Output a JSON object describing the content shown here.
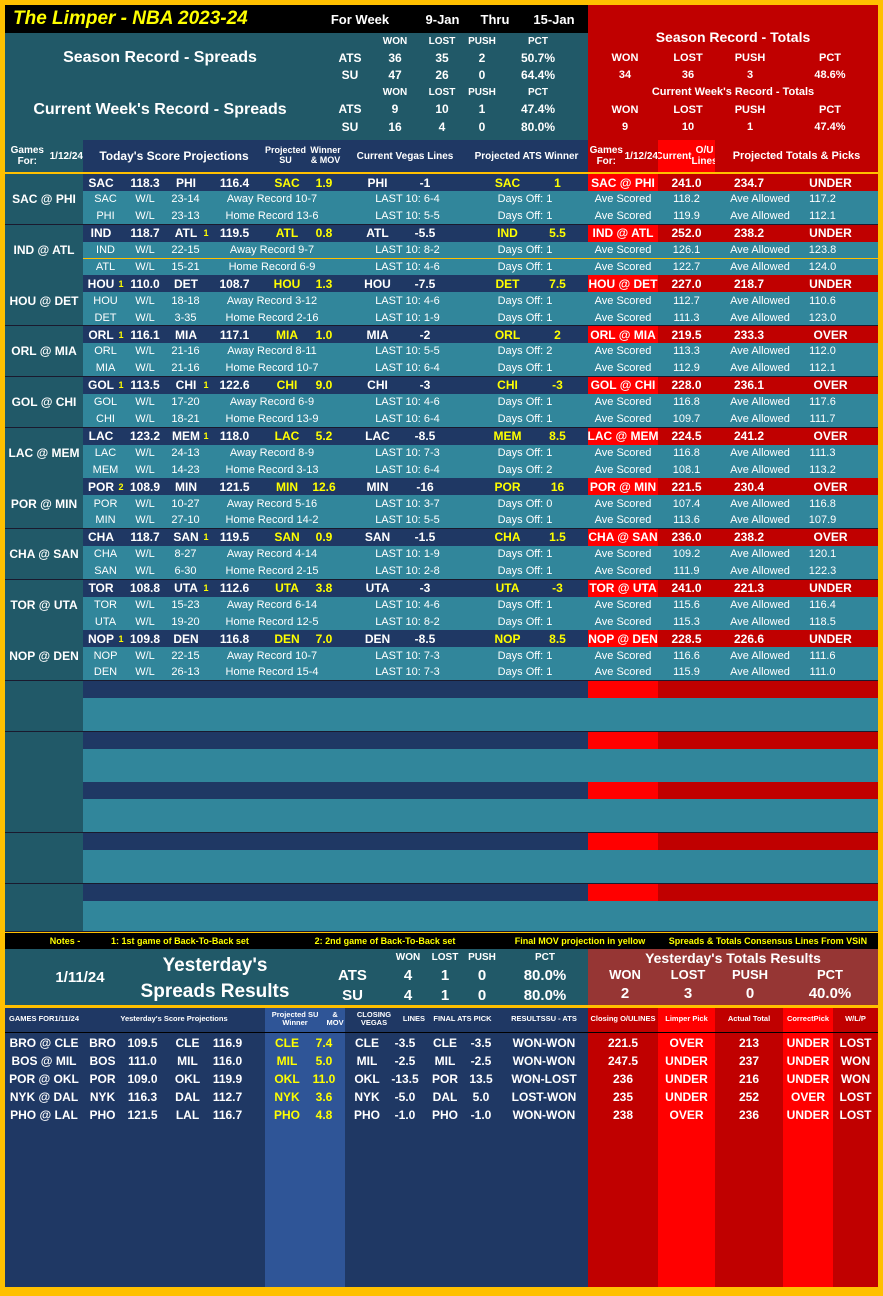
{
  "header": {
    "title": "The Limper - NBA 2023-24",
    "for_week": "For Week",
    "start": "9-Jan",
    "thru": "Thru",
    "end": "15-Jan"
  },
  "season_spreads": {
    "label": "Season Record - Spreads",
    "week_label": "Current Week's Record - Spreads",
    "cols": [
      "WON",
      "LOST",
      "PUSH",
      "PCT"
    ],
    "season_rows": [
      {
        "type": "ATS",
        "won": "36",
        "lost": "35",
        "push": "2",
        "pct": "50.7%"
      },
      {
        "type": "SU",
        "won": "47",
        "lost": "26",
        "push": "0",
        "pct": "64.4%"
      }
    ],
    "week_rows": [
      {
        "type": "ATS",
        "won": "9",
        "lost": "10",
        "push": "1",
        "pct": "47.4%"
      },
      {
        "type": "SU",
        "won": "16",
        "lost": "4",
        "push": "0",
        "pct": "80.0%"
      }
    ]
  },
  "season_totals": {
    "label": "Season Record - Totals",
    "week_label": "Current Week's Record - Totals",
    "cols": [
      "WON",
      "LOST",
      "PUSH",
      "PCT"
    ],
    "season": {
      "won": "34",
      "lost": "36",
      "push": "3",
      "pct": "48.6%"
    },
    "week": {
      "won": "9",
      "lost": "10",
      "push": "1",
      "pct": "47.4%"
    }
  },
  "col_headers": {
    "games_for": "Games For:",
    "date": "1/12/24",
    "today_proj": "Today's Score Projections",
    "proj_su_1": "Projected SU",
    "proj_su_2": "Winner & MOV",
    "vegas": "Current Vegas Lines",
    "ats": "Projected ATS Winner",
    "games_for_r": "Games For:",
    "date_r": "1/12/24",
    "ou_1": "Current",
    "ou_2": "O/U Lines",
    "totals": "Projected Totals & Picks"
  },
  "labels": {
    "wl": "W/L",
    "ave_scored": "Ave Scored",
    "ave_allowed": "Ave Allowed"
  },
  "games": [
    {
      "matchup": "SAC @ PHI",
      "t1": "SAC",
      "n1": "",
      "s1": "118.3",
      "t2": "PHI",
      "n2": "",
      "s2": "116.4",
      "su_team": "SAC",
      "su_mov": "1.9",
      "line_team": "PHI",
      "line": "-1",
      "ats_team": "SAC",
      "ats_val": "1",
      "ou": "241.0",
      "proj_total": "234.7",
      "pick": "UNDER",
      "r1": {
        "team": "SAC",
        "wl": "23-14",
        "rec": "Away Record 10-7",
        "last10": "LAST 10: 6-4",
        "days": "Days Off: 1",
        "scored": "118.2",
        "allowed": "117.2"
      },
      "r2": {
        "team": "PHI",
        "wl": "23-13",
        "rec": "Home Record 13-6",
        "last10": "LAST 10: 5-5",
        "days": "Days Off: 1",
        "scored": "119.9",
        "allowed": "112.1"
      }
    },
    {
      "matchup": "IND @ ATL",
      "t1": "IND",
      "n1": "",
      "s1": "118.7",
      "t2": "ATL",
      "n2": "1",
      "s2": "119.5",
      "su_team": "ATL",
      "su_mov": "0.8",
      "line_team": "ATL",
      "line": "-5.5",
      "ats_team": "IND",
      "ats_val": "5.5",
      "ou": "252.0",
      "proj_total": "238.2",
      "pick": "UNDER",
      "r1": {
        "team": "IND",
        "wl": "22-15",
        "rec": "Away Record 9-7",
        "last10": "LAST 10: 8-2",
        "days": "Days Off: 1",
        "scored": "126.1",
        "allowed": "123.8"
      },
      "r2": {
        "team": "ATL",
        "wl": "15-21",
        "rec": "Home Record 6-9",
        "last10": "LAST 10: 4-6",
        "days": "Days Off: 1",
        "scored": "122.7",
        "allowed": "124.0"
      }
    },
    {
      "matchup": "HOU @ DET",
      "t1": "HOU",
      "n1": "1",
      "s1": "110.0",
      "t2": "DET",
      "n2": "",
      "s2": "108.7",
      "su_team": "HOU",
      "su_mov": "1.3",
      "line_team": "HOU",
      "line": "-7.5",
      "ats_team": "DET",
      "ats_val": "7.5",
      "ou": "227.0",
      "proj_total": "218.7",
      "pick": "UNDER",
      "r1": {
        "team": "HOU",
        "wl": "18-18",
        "rec": "Away Record 3-12",
        "last10": "LAST 10: 4-6",
        "days": "Days Off: 1",
        "scored": "112.7",
        "allowed": "110.6"
      },
      "r2": {
        "team": "DET",
        "wl": "3-35",
        "rec": "Home Record 2-16",
        "last10": "LAST 10: 1-9",
        "days": "Days Off: 1",
        "scored": "111.3",
        "allowed": "123.0"
      }
    },
    {
      "matchup": "ORL @ MIA",
      "t1": "ORL",
      "n1": "1",
      "s1": "116.1",
      "t2": "MIA",
      "n2": "",
      "s2": "117.1",
      "su_team": "MIA",
      "su_mov": "1.0",
      "line_team": "MIA",
      "line": "-2",
      "ats_team": "ORL",
      "ats_val": "2",
      "ou": "219.5",
      "proj_total": "233.3",
      "pick": "OVER",
      "r1": {
        "team": "ORL",
        "wl": "21-16",
        "rec": "Away Record 8-11",
        "last10": "LAST 10: 5-5",
        "days": "Days Off: 2",
        "scored": "113.3",
        "allowed": "112.0"
      },
      "r2": {
        "team": "MIA",
        "wl": "21-16",
        "rec": "Home Record 10-7",
        "last10": "LAST 10: 6-4",
        "days": "Days Off: 1",
        "scored": "112.9",
        "allowed": "112.1"
      }
    },
    {
      "matchup": "GOL @ CHI",
      "t1": "GOL",
      "n1": "1",
      "s1": "113.5",
      "t2": "CHI",
      "n2": "1",
      "s2": "122.6",
      "su_team": "CHI",
      "su_mov": "9.0",
      "line_team": "CHI",
      "line": "-3",
      "ats_team": "CHI",
      "ats_val": "-3",
      "ou": "228.0",
      "proj_total": "236.1",
      "pick": "OVER",
      "r1": {
        "team": "GOL",
        "wl": "17-20",
        "rec": "Away Record 6-9",
        "last10": "LAST 10: 4-6",
        "days": "Days Off: 1",
        "scored": "116.8",
        "allowed": "117.6"
      },
      "r2": {
        "team": "CHI",
        "wl": "18-21",
        "rec": "Home Record 13-9",
        "last10": "LAST 10: 6-4",
        "days": "Days Off: 1",
        "scored": "109.7",
        "allowed": "111.7"
      }
    },
    {
      "matchup": "LAC @ MEM",
      "t1": "LAC",
      "n1": "",
      "s1": "123.2",
      "t2": "MEM",
      "n2": "1",
      "s2": "118.0",
      "su_team": "LAC",
      "su_mov": "5.2",
      "line_team": "LAC",
      "line": "-8.5",
      "ats_team": "MEM",
      "ats_val": "8.5",
      "ou": "224.5",
      "proj_total": "241.2",
      "pick": "OVER",
      "r1": {
        "team": "LAC",
        "wl": "24-13",
        "rec": "Away Record 8-9",
        "last10": "LAST 10: 7-3",
        "days": "Days Off: 1",
        "scored": "116.8",
        "allowed": "111.3"
      },
      "r2": {
        "team": "MEM",
        "wl": "14-23",
        "rec": "Home Record 3-13",
        "last10": "LAST 10: 6-4",
        "days": "Days Off: 2",
        "scored": "108.1",
        "allowed": "113.2"
      }
    },
    {
      "matchup": "POR @ MIN",
      "t1": "POR",
      "n1": "2",
      "s1": "108.9",
      "t2": "MIN",
      "n2": "",
      "s2": "121.5",
      "su_team": "MIN",
      "su_mov": "12.6",
      "line_team": "MIN",
      "line": "-16",
      "ats_team": "POR",
      "ats_val": "16",
      "ou": "221.5",
      "proj_total": "230.4",
      "pick": "OVER",
      "r1": {
        "team": "POR",
        "wl": "10-27",
        "rec": "Away Record 5-16",
        "last10": "LAST 10: 3-7",
        "days": "Days Off: 0",
        "scored": "107.4",
        "allowed": "116.8"
      },
      "r2": {
        "team": "MIN",
        "wl": "27-10",
        "rec": "Home Record 14-2",
        "last10": "LAST 10: 5-5",
        "days": "Days Off: 1",
        "scored": "113.6",
        "allowed": "107.9"
      }
    },
    {
      "matchup": "CHA @ SAN",
      "t1": "CHA",
      "n1": "",
      "s1": "118.7",
      "t2": "SAN",
      "n2": "1",
      "s2": "119.5",
      "su_team": "SAN",
      "su_mov": "0.9",
      "line_team": "SAN",
      "line": "-1.5",
      "ats_team": "CHA",
      "ats_val": "1.5",
      "ou": "236.0",
      "proj_total": "238.2",
      "pick": "OVER",
      "r1": {
        "team": "CHA",
        "wl": "8-27",
        "rec": "Away Record 4-14",
        "last10": "LAST 10: 1-9",
        "days": "Days Off: 1",
        "scored": "109.2",
        "allowed": "120.1"
      },
      "r2": {
        "team": "SAN",
        "wl": "6-30",
        "rec": "Home Record 2-15",
        "last10": "LAST 10: 2-8",
        "days": "Days Off: 1",
        "scored": "111.9",
        "allowed": "122.3"
      }
    },
    {
      "matchup": "TOR @ UTA",
      "t1": "TOR",
      "n1": "",
      "s1": "108.8",
      "t2": "UTA",
      "n2": "1",
      "s2": "112.6",
      "su_team": "UTA",
      "su_mov": "3.8",
      "line_team": "UTA",
      "line": "-3",
      "ats_team": "UTA",
      "ats_val": "-3",
      "ou": "241.0",
      "proj_total": "221.3",
      "pick": "UNDER",
      "r1": {
        "team": "TOR",
        "wl": "15-23",
        "rec": "Away Record 6-14",
        "last10": "LAST 10: 4-6",
        "days": "Days Off: 1",
        "scored": "115.6",
        "allowed": "116.4"
      },
      "r2": {
        "team": "UTA",
        "wl": "19-20",
        "rec": "Home Record 12-5",
        "last10": "LAST 10: 8-2",
        "days": "Days Off: 1",
        "scored": "115.3",
        "allowed": "118.5"
      }
    },
    {
      "matchup": "NOP @ DEN",
      "t1": "NOP",
      "n1": "1",
      "s1": "109.8",
      "t2": "DEN",
      "n2": "",
      "s2": "116.8",
      "su_team": "DEN",
      "su_mov": "7.0",
      "line_team": "DEN",
      "line": "-8.5",
      "ats_team": "NOP",
      "ats_val": "8.5",
      "ou": "228.5",
      "proj_total": "226.6",
      "pick": "UNDER",
      "r1": {
        "team": "NOP",
        "wl": "22-15",
        "rec": "Away Record 10-7",
        "last10": "LAST 10: 7-3",
        "days": "Days Off: 1",
        "scored": "116.6",
        "allowed": "111.6"
      },
      "r2": {
        "team": "DEN",
        "wl": "26-13",
        "rec": "Home Record 15-4",
        "last10": "LAST 10: 7-3",
        "days": "Days Off: 1",
        "scored": "115.9",
        "allowed": "111.0"
      }
    }
  ],
  "notes": {
    "label": "Notes -",
    "n1": "1: 1st game of Back-To-Back set",
    "n2": "2: 2nd game of Back-To-Back set",
    "n3": "Final MOV projection in yellow",
    "n4": "Spreads & Totals Consensus Lines From VSiN"
  },
  "yesterday": {
    "date": "1/11/24",
    "title1": "Yesterday's",
    "title2": "Spreads Results",
    "cols": [
      "WON",
      "LOST",
      "PUSH",
      "PCT"
    ],
    "rows": [
      {
        "type": "ATS",
        "won": "4",
        "lost": "1",
        "push": "0",
        "pct": "80.0%"
      },
      {
        "type": "SU",
        "won": "4",
        "lost": "1",
        "push": "0",
        "pct": "80.0%"
      }
    ],
    "totals_title": "Yesterday's Totals Results",
    "totals_cols": [
      "WON",
      "LOST",
      "PUSH",
      "PCT"
    ],
    "totals": {
      "won": "2",
      "lost": "3",
      "push": "0",
      "pct": "40.0%"
    }
  },
  "yest_headers": {
    "games_for_1": "GAMES FOR",
    "games_for_2": "1/11/24",
    "proj": "Yesterday's Score Projections",
    "su_1": "Projected SU Winner",
    "su_2": "& MOV",
    "closing_1": "CLOSING VEGAS",
    "closing_2": "LINES",
    "final_ats": "FINAL ATS PICK",
    "results_1": "RESULTS",
    "results_2": "SU - ATS",
    "closing_ou_1": "Closing O/U",
    "closing_ou_2": "LINES",
    "limper_pick": "Limper Pick",
    "actual_total": "Actual Total",
    "correct_1": "Correct",
    "correct_2": "Pick",
    "wlp": "W/L/P"
  },
  "yest_games": [
    {
      "matchup": "BRO @ CLE",
      "t1": "BRO",
      "s1": "109.5",
      "t2": "CLE",
      "s2": "116.9",
      "su_team": "CLE",
      "su_mov": "7.4",
      "line_team": "CLE",
      "line": "-3.5",
      "ats_team": "CLE",
      "ats_val": "-3.5",
      "result": "WON-WON",
      "ou": "221.5",
      "pick": "OVER",
      "actual": "213",
      "correct": "UNDER",
      "wlp": "LOST"
    },
    {
      "matchup": "BOS @ MIL",
      "t1": "BOS",
      "s1": "111.0",
      "t2": "MIL",
      "s2": "116.0",
      "su_team": "MIL",
      "su_mov": "5.0",
      "line_team": "MIL",
      "line": "-2.5",
      "ats_team": "MIL",
      "ats_val": "-2.5",
      "result": "WON-WON",
      "ou": "247.5",
      "pick": "UNDER",
      "actual": "237",
      "correct": "UNDER",
      "wlp": "WON"
    },
    {
      "matchup": "POR @ OKL",
      "t1": "POR",
      "s1": "109.0",
      "t2": "OKL",
      "s2": "119.9",
      "su_team": "OKL",
      "su_mov": "11.0",
      "line_team": "OKL",
      "line": "-13.5",
      "ats_team": "POR",
      "ats_val": "13.5",
      "result": "WON-LOST",
      "ou": "236",
      "pick": "UNDER",
      "actual": "216",
      "correct": "UNDER",
      "wlp": "WON"
    },
    {
      "matchup": "NYK @ DAL",
      "t1": "NYK",
      "s1": "116.3",
      "t2": "DAL",
      "s2": "112.7",
      "su_team": "NYK",
      "su_mov": "3.6",
      "line_team": "NYK",
      "line": "-5.0",
      "ats_team": "DAL",
      "ats_val": "5.0",
      "result": "LOST-WON",
      "ou": "235",
      "pick": "UNDER",
      "actual": "252",
      "correct": "OVER",
      "wlp": "LOST"
    },
    {
      "matchup": "PHO @ LAL",
      "t1": "PHO",
      "s1": "121.5",
      "t2": "LAL",
      "s2": "116.7",
      "su_team": "PHO",
      "su_mov": "4.8",
      "line_team": "PHO",
      "line": "-1.0",
      "ats_team": "PHO",
      "ats_val": "-1.0",
      "result": "WON-WON",
      "ou": "238",
      "pick": "OVER",
      "actual": "236",
      "correct": "UNDER",
      "wlp": "LOST"
    }
  ],
  "colors": {
    "gold_border": "#ffc000",
    "navy": "#1f3864",
    "teal": "#31869b",
    "dark_teal": "#215968",
    "red": "#c00000",
    "bright_red": "#ff0000",
    "yellow": "#ffff00",
    "maroon": "#963634"
  }
}
